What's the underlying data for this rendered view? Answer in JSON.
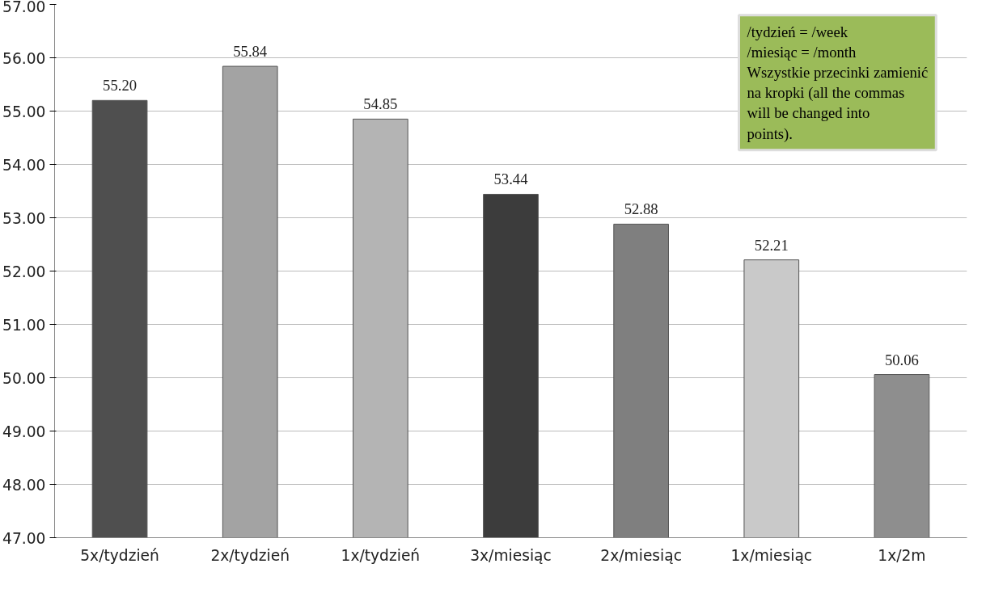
{
  "chart_data": {
    "type": "bar",
    "categories": [
      "5x/tydzień",
      "2x/tydzień",
      "1x/tydzień",
      "3x/miesiąc",
      "2x/miesiąc",
      "1x/miesiąc",
      "1x/2m"
    ],
    "values": [
      55.2,
      55.84,
      54.85,
      53.44,
      52.88,
      52.21,
      50.06
    ],
    "colors": [
      "#4f4f4f",
      "#a3a3a3",
      "#b4b4b4",
      "#3c3c3c",
      "#7f7f7f",
      "#c9c9c9",
      "#8e8e8e"
    ],
    "value_labels": [
      "55.20",
      "55.84",
      "54.85",
      "53.44",
      "52.88",
      "52.21",
      "50.06"
    ],
    "ylim": [
      47,
      57
    ],
    "yticks": [
      {
        "value": 47,
        "label": "47.00"
      },
      {
        "value": 48,
        "label": "48.00"
      },
      {
        "value": 49,
        "label": "49.00"
      },
      {
        "value": 50,
        "label": "50.00"
      },
      {
        "value": 51,
        "label": "51.00"
      },
      {
        "value": 52,
        "label": "52.00"
      },
      {
        "value": 53,
        "label": "53.00"
      },
      {
        "value": 54,
        "label": "54.00"
      },
      {
        "value": 55,
        "label": "55.00"
      },
      {
        "value": 56,
        "label": "56.00"
      },
      {
        "value": 57,
        "label": "57.00"
      }
    ],
    "grid": "y",
    "annotations": [
      "/tydzień = /week",
      "/miesiąc = /month",
      "Wszystkie przecinki zamienić na kropki (all the commas will be changed into points)."
    ]
  }
}
